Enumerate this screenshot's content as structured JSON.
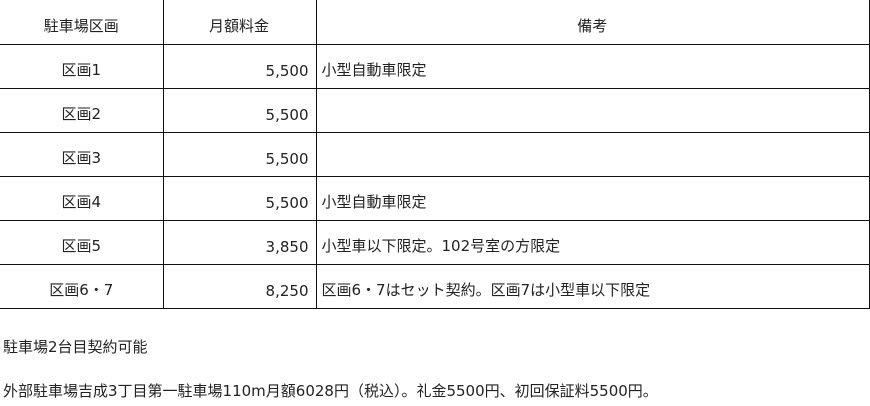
{
  "table": {
    "headers": [
      "駐車場区画",
      "月額料金",
      "備考"
    ],
    "rows": [
      {
        "section": "区画1",
        "fee": "5,500",
        "remarks": "小型自動車限定"
      },
      {
        "section": "区画2",
        "fee": "5,500",
        "remarks": ""
      },
      {
        "section": "区画3",
        "fee": "5,500",
        "remarks": ""
      },
      {
        "section": "区画4",
        "fee": "5,500",
        "remarks": "小型自動車限定"
      },
      {
        "section": "区画5",
        "fee": "3,850",
        "remarks": "小型車以下限定。102号室の方限定"
      },
      {
        "section": "区画6・7",
        "fee": "8,250",
        "remarks": "区画6・7はセット契約。区画7は小型車以下限定"
      }
    ]
  },
  "notes": [
    "駐車場2台目契約可能",
    "外部駐車場吉成3丁目第一駐車場110m月額6028円（税込）。礼金5500円、初回保証料5500円。"
  ]
}
